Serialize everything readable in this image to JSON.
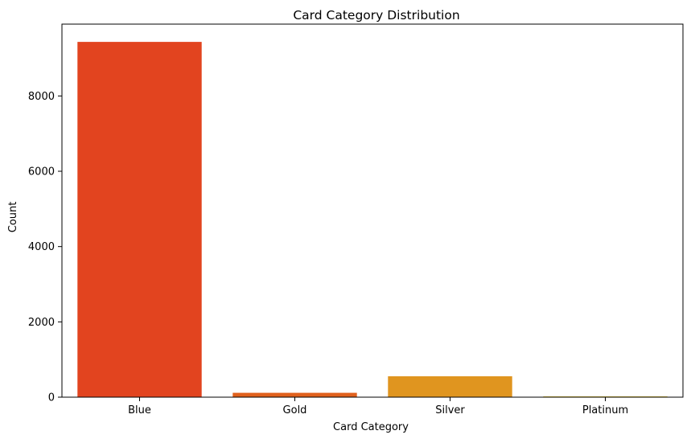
{
  "chart_data": {
    "type": "bar",
    "title": "Card Category Distribution",
    "xlabel": "Card Category",
    "ylabel": "Count",
    "categories": [
      "Blue",
      "Gold",
      "Silver",
      "Platinum"
    ],
    "values": [
      9436,
      116,
      555,
      20
    ],
    "colors": [
      "#e2441f",
      "#e0611d",
      "#e0951f",
      "#e0c01c"
    ],
    "ylim": [
      0,
      9908
    ],
    "yticks": [
      0,
      2000,
      4000,
      6000,
      8000
    ],
    "ytick_labels": [
      "0",
      "2000",
      "4000",
      "6000",
      "8000"
    ],
    "grid": false,
    "legend": "none"
  }
}
